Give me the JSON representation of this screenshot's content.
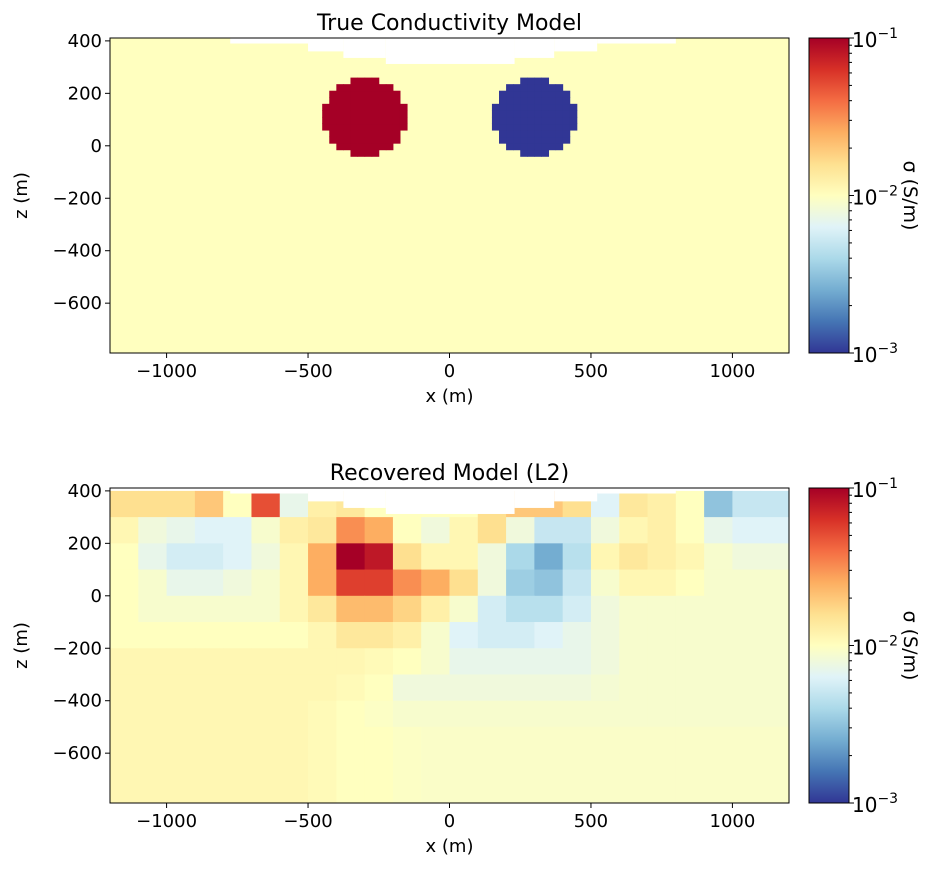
{
  "chart_data": [
    {
      "type": "heatmap",
      "title": "True Conductivity Model",
      "xlabel": "x (m)",
      "ylabel": "z (m)",
      "xlim": [
        -1200,
        1200
      ],
      "ylim": [
        -790,
        411
      ],
      "xticks": [
        -1000,
        -500,
        0,
        500,
        1000
      ],
      "xtick_labels": [
        "−1000",
        "−500",
        "0",
        "500",
        "1000"
      ],
      "yticks": [
        400,
        200,
        0,
        -200,
        -400,
        -600
      ],
      "ytick_labels": [
        "400",
        "200",
        "0",
        "−200",
        "−400",
        "−600"
      ],
      "colormap": "RdYlBu_r",
      "color_scale": "log",
      "clim": [
        0.001,
        0.1
      ],
      "colorbar_label": "σ (S/m)",
      "colorbar_ticks": [
        "10",
        "10",
        "10"
      ],
      "colorbar_tick_exponents": [
        "−1",
        "−2",
        "−3"
      ],
      "background_sigma": 0.01,
      "bodies": [
        {
          "shape": "sphere",
          "center_x": -300,
          "center_z": 110,
          "radius": 150,
          "sigma": 0.1
        },
        {
          "shape": "sphere",
          "center_x": 300,
          "center_z": 110,
          "radius": 150,
          "sigma": 0.001
        }
      ],
      "topography": [
        {
          "x": [
            -1200,
            -775
          ],
          "z": 411
        },
        {
          "x": [
            -775,
            -500
          ],
          "z": 390
        },
        {
          "x": [
            -500,
            -375
          ],
          "z": 360
        },
        {
          "x": [
            -375,
            -225
          ],
          "z": 335
        },
        {
          "x": [
            -225,
            230
          ],
          "z": 312
        },
        {
          "x": [
            230,
            370
          ],
          "z": 335
        },
        {
          "x": [
            370,
            522
          ],
          "z": 360
        },
        {
          "x": [
            522,
            800
          ],
          "z": 390
        },
        {
          "x": [
            800,
            1200
          ],
          "z": 411
        }
      ]
    },
    {
      "type": "heatmap",
      "title": "Recovered Model (L2)",
      "xlabel": "x (m)",
      "ylabel": "z (m)",
      "xlim": [
        -1200,
        1200
      ],
      "ylim": [
        -790,
        411
      ],
      "xticks": [
        -1000,
        -500,
        0,
        500,
        1000
      ],
      "xtick_labels": [
        "−1000",
        "−500",
        "0",
        "500",
        "1000"
      ],
      "yticks": [
        400,
        200,
        0,
        -200,
        -400,
        -600
      ],
      "ytick_labels": [
        "400",
        "200",
        "0",
        "−200",
        "−400",
        "−600"
      ],
      "colormap": "RdYlBu_r",
      "color_scale": "log",
      "clim": [
        0.001,
        0.1
      ],
      "colorbar_label": "σ (S/m)",
      "colorbar_ticks": [
        "10",
        "10",
        "10"
      ],
      "colorbar_tick_exponents": [
        "−1",
        "−2",
        "−3"
      ],
      "grid_x_centers": [
        -1150,
        -1050,
        -950,
        -850,
        -750,
        -650,
        -550,
        -450,
        -350,
        -250,
        -150,
        -50,
        50,
        150,
        250,
        350,
        450,
        550,
        650,
        750,
        850,
        950,
        1050,
        1150
      ],
      "grid_z_centers": [
        350,
        250,
        150,
        50,
        -50,
        -150,
        -250,
        -350,
        -450,
        -550,
        -650,
        -750
      ],
      "log10_sigma": [
        [
          -1.8,
          -1.8,
          -1.8,
          -1.7,
          -2.0,
          -1.3,
          -2.15,
          -1.9,
          -1.85,
          -2,
          -2,
          -2,
          -2,
          -1.8,
          -1.7,
          -1.7,
          -1.8,
          -2.2,
          -1.85,
          -1.9,
          -2.0,
          -2.5,
          -2.3,
          -2.3
        ],
        [
          -1.95,
          -2.1,
          -2.15,
          -2.2,
          -2.2,
          -2.05,
          -1.9,
          -1.85,
          -1.5,
          -1.6,
          -2.0,
          -2.1,
          -1.95,
          -1.8,
          -2.1,
          -2.3,
          -2.3,
          -2.1,
          -1.95,
          -1.9,
          -2.0,
          -2.15,
          -2.2,
          -2.2
        ],
        [
          -2.0,
          -2.15,
          -2.25,
          -2.25,
          -2.2,
          -2.1,
          -1.95,
          -1.6,
          -1.0,
          -1.1,
          -1.8,
          -1.95,
          -1.95,
          -2.1,
          -2.4,
          -2.6,
          -2.35,
          -1.95,
          -1.85,
          -1.9,
          -1.95,
          -2.05,
          -2.1,
          -2.1
        ],
        [
          -2.0,
          -2.05,
          -2.15,
          -2.15,
          -2.1,
          -2.05,
          -1.95,
          -1.6,
          -1.25,
          -1.25,
          -1.5,
          -1.6,
          -1.8,
          -2.1,
          -2.45,
          -2.5,
          -2.3,
          -2.05,
          -1.95,
          -1.95,
          -2.0,
          -2.05,
          -2.05,
          -2.05
        ],
        [
          -2.0,
          -2.05,
          -2.05,
          -2.05,
          -2.05,
          -2.05,
          -1.95,
          -1.85,
          -1.65,
          -1.65,
          -1.75,
          -1.9,
          -2.05,
          -2.25,
          -2.35,
          -2.35,
          -2.25,
          -2.1,
          -2.05,
          -2.05,
          -2.05,
          -2.05,
          -2.05,
          -2.05
        ],
        [
          -2.0,
          -2.0,
          -2.0,
          -2.0,
          -2.0,
          -2.0,
          -2.0,
          -1.95,
          -1.85,
          -1.85,
          -1.9,
          -2.05,
          -2.2,
          -2.25,
          -2.25,
          -2.2,
          -2.15,
          -2.1,
          -2.05,
          -2.05,
          -2.05,
          -2.05,
          -2.05,
          -2.05
        ],
        [
          -1.95,
          -1.95,
          -1.95,
          -1.95,
          -1.95,
          -1.95,
          -1.95,
          -1.95,
          -1.95,
          -1.97,
          -2.0,
          -2.05,
          -2.15,
          -2.15,
          -2.15,
          -2.15,
          -2.15,
          -2.1,
          -2.05,
          -2.05,
          -2.05,
          -2.05,
          -2.05,
          -2.05
        ],
        [
          -1.95,
          -1.95,
          -1.95,
          -1.95,
          -1.95,
          -1.95,
          -1.95,
          -1.95,
          -1.97,
          -2.0,
          -2.1,
          -2.1,
          -2.1,
          -2.1,
          -2.1,
          -2.1,
          -2.1,
          -2.07,
          -2.05,
          -2.05,
          -2.05,
          -2.05,
          -2.05,
          -2.05
        ],
        [
          -1.95,
          -1.95,
          -1.95,
          -1.95,
          -1.95,
          -1.95,
          -1.95,
          -1.97,
          -2.0,
          -2.02,
          -2.05,
          -2.05,
          -2.05,
          -2.05,
          -2.05,
          -2.05,
          -2.05,
          -2.05,
          -2.05,
          -2.05,
          -2.05,
          -2.05,
          -2.05,
          -2.05
        ],
        [
          -1.95,
          -1.95,
          -1.95,
          -1.95,
          -1.95,
          -1.95,
          -1.95,
          -1.97,
          -2.0,
          -2.0,
          -2.02,
          -2.03,
          -2.03,
          -2.03,
          -2.03,
          -2.03,
          -2.03,
          -2.03,
          -2.03,
          -2.03,
          -2.03,
          -2.03,
          -2.03,
          -2.03
        ],
        [
          -1.95,
          -1.95,
          -1.95,
          -1.95,
          -1.95,
          -1.95,
          -1.95,
          -1.97,
          -2.0,
          -2.0,
          -2.02,
          -2.03,
          -2.03,
          -2.03,
          -2.03,
          -2.03,
          -2.03,
          -2.03,
          -2.03,
          -2.03,
          -2.03,
          -2.03,
          -2.03,
          -2.03
        ],
        [
          -1.95,
          -1.95,
          -1.95,
          -1.95,
          -1.95,
          -1.95,
          -1.95,
          -1.97,
          -2.0,
          -2.0,
          -2.02,
          -2.03,
          -2.03,
          -2.03,
          -2.03,
          -2.03,
          -2.03,
          -2.03,
          -2.03,
          -2.03,
          -2.03,
          -2.03,
          -2.03,
          -2.03
        ]
      ],
      "topography": [
        {
          "x": [
            -1200,
            -775
          ],
          "z": 411
        },
        {
          "x": [
            -775,
            -500
          ],
          "z": 390
        },
        {
          "x": [
            -500,
            -375
          ],
          "z": 360
        },
        {
          "x": [
            -375,
            -225
          ],
          "z": 335
        },
        {
          "x": [
            -225,
            230
          ],
          "z": 312
        },
        {
          "x": [
            230,
            370
          ],
          "z": 335
        },
        {
          "x": [
            370,
            522
          ],
          "z": 360
        },
        {
          "x": [
            522,
            800
          ],
          "z": 390
        },
        {
          "x": [
            800,
            1200
          ],
          "z": 411
        }
      ]
    }
  ]
}
